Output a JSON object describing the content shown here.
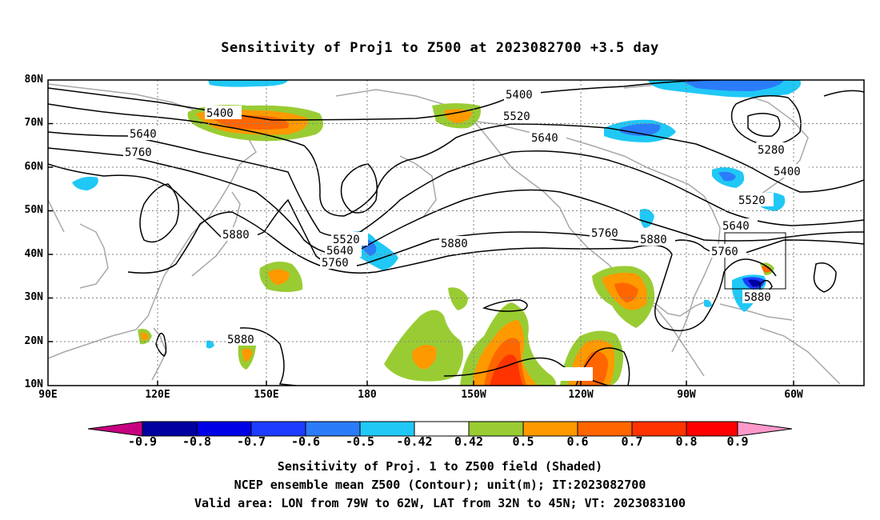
{
  "title": "Sensitivity of Proj1 to Z500 at 2023082700 +3.5 day",
  "map": {
    "lat_labels": [
      "80N",
      "70N",
      "60N",
      "50N",
      "40N",
      "30N",
      "20N",
      "10N"
    ],
    "lon_labels": [
      "90E",
      "120E",
      "150E",
      "180",
      "150W",
      "120W",
      "90W",
      "60W"
    ],
    "contour_labels": [
      "5400",
      "5640",
      "5760",
      "5880",
      "5520",
      "5640",
      "5760",
      "5400",
      "5520",
      "5640",
      "5280",
      "5400",
      "5520",
      "5640",
      "5760",
      "5760",
      "5880",
      "5880",
      "5880",
      "5880"
    ]
  },
  "colorbar": {
    "labels": [
      "-0.9",
      "-0.8",
      "-0.7",
      "-0.6",
      "-0.5",
      "-0.42",
      "0.42",
      "0.5",
      "0.6",
      "0.7",
      "0.8",
      "0.9"
    ],
    "colors": [
      "#c8007f",
      "#0000a0",
      "#0000e6",
      "#1e3cff",
      "#2b7cf8",
      "#20c8f5",
      "#ffffff",
      "#99cc33",
      "#ff9900",
      "#ff6600",
      "#ff3300",
      "#ff0000",
      "#ff99cc"
    ]
  },
  "captions": [
    "Sensitivity of Proj. 1 to Z500 field (Shaded)",
    "NCEP ensemble mean Z500 (Contour); unit(m); IT:2023082700",
    "Valid area: LON from 79W to 62W, LAT from 32N to 45N; VT: 2023083100"
  ]
}
